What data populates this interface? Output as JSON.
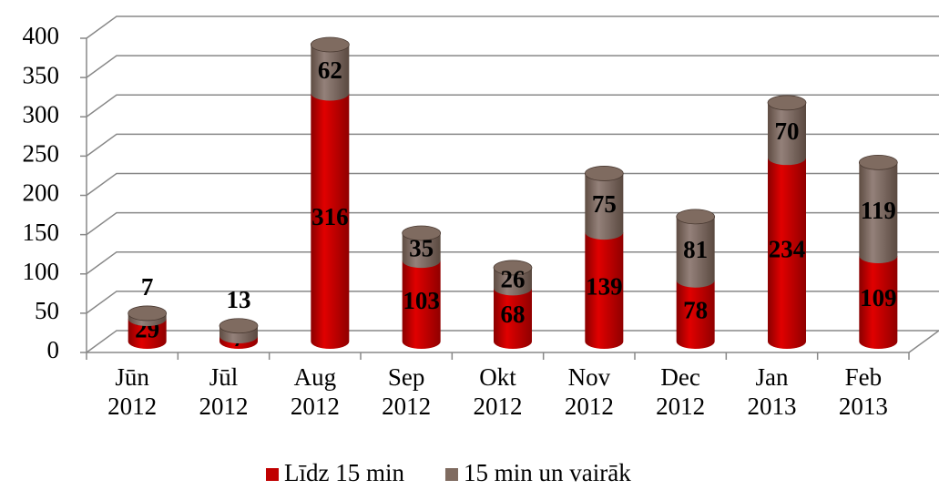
{
  "chart_data": {
    "type": "bar",
    "stacked": true,
    "categories": [
      "Jūn 2012",
      "Jūl 2012",
      "Aug 2012",
      "Sep 2012",
      "Okt 2012",
      "Nov 2012",
      "Dec 2012",
      "Jan 2013",
      "Feb 2013"
    ],
    "series": [
      {
        "name": "Līdz 15 min",
        "color": "#c00000",
        "values": [
          29,
          7,
          316,
          103,
          68,
          139,
          78,
          234,
          109
        ]
      },
      {
        "name": "15 min un vairāk",
        "color": "#7f6b60",
        "values": [
          7,
          13,
          62,
          35,
          26,
          75,
          81,
          70,
          119
        ]
      }
    ],
    "ylim": [
      0,
      400
    ],
    "yticks": [
      0,
      50,
      100,
      150,
      200,
      250,
      300,
      350,
      400
    ],
    "grid": true
  }
}
